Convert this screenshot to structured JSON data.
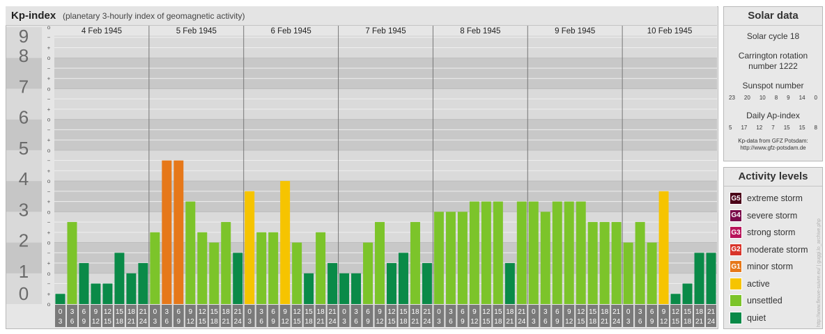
{
  "header": {
    "title": "Kp-index",
    "subtitle": "(planetary 3-hourly index of geomagnetic activity)"
  },
  "colors": {
    "quiet": "#0a8a48",
    "unsettled": "#7cc42a",
    "active": "#f6c400",
    "minor_storm": "#e6781a",
    "moderate_storm": "#d8342a",
    "strong_storm": "#b8145a",
    "severe_storm": "#7a0a4a",
    "extreme_storm": "#4a0018"
  },
  "chart_data": {
    "type": "bar",
    "ylim": [
      0,
      9
    ],
    "y_ticks": [
      "0",
      "1",
      "2",
      "3",
      "4",
      "5",
      "6",
      "7",
      "8",
      "9"
    ],
    "sub_ticks": [
      "+",
      "o",
      "−"
    ],
    "days": [
      "4 Feb 1945",
      "5 Feb 1945",
      "6 Feb 1945",
      "7 Feb 1945",
      "8 Feb 1945",
      "9 Feb 1945",
      "10 Feb 1945"
    ],
    "interval_labels": [
      [
        "0",
        "3"
      ],
      [
        "3",
        "6"
      ],
      [
        "6",
        "9"
      ],
      [
        "9",
        "12"
      ],
      [
        "12",
        "15"
      ],
      [
        "15",
        "18"
      ],
      [
        "18",
        "21"
      ],
      [
        "21",
        "24"
      ]
    ],
    "values": [
      [
        0.333,
        2.667,
        1.333,
        0.667,
        0.667,
        1.667,
        1.0,
        1.333
      ],
      [
        2.333,
        4.667,
        4.667,
        3.333,
        2.333,
        2.0,
        2.667,
        1.667
      ],
      [
        3.667,
        2.333,
        2.333,
        4.0,
        2.0,
        1.0,
        2.333,
        1.333
      ],
      [
        1.0,
        1.0,
        2.0,
        2.667,
        1.333,
        1.667,
        2.667,
        1.333
      ],
      [
        3.0,
        3.0,
        3.0,
        3.333,
        3.333,
        3.333,
        1.333,
        3.333
      ],
      [
        3.333,
        3.0,
        3.333,
        3.333,
        3.333,
        2.667,
        2.667,
        2.667
      ],
      [
        2.0,
        2.667,
        2.0,
        3.667,
        0.333,
        0.667,
        1.667,
        1.667
      ]
    ]
  },
  "solar_data": {
    "heading": "Solar data",
    "solar_cycle": "Solar cycle 18",
    "carrington_line1": "Carrington rotation",
    "carrington_line2": "number 1222",
    "sunspot_label": "Sunspot number",
    "sunspot_numbers": [
      "23",
      "20",
      "10",
      "8",
      "9",
      "14",
      "0"
    ],
    "ap_label": "Daily Ap-index",
    "ap_numbers": [
      "5",
      "17",
      "12",
      "7",
      "15",
      "15",
      "8"
    ],
    "credit_line1": "Kp-data from GFZ Potsdam:",
    "credit_line2": "http://www.gfz-potsdam.de"
  },
  "activity_levels": {
    "heading": "Activity levels",
    "items": [
      {
        "code": "G5",
        "label": "extreme storm",
        "color": "#4a0018"
      },
      {
        "code": "G4",
        "label": "severe storm",
        "color": "#7a0a4a"
      },
      {
        "code": "G3",
        "label": "strong storm",
        "color": "#b8145a"
      },
      {
        "code": "G2",
        "label": "moderate storm",
        "color": "#d8342a"
      },
      {
        "code": "G1",
        "label": "minor storm",
        "color": "#e6781a"
      },
      {
        "code": "",
        "label": "active",
        "color": "#f6c400"
      },
      {
        "code": "",
        "label": "unsettled",
        "color": "#7cc42a"
      },
      {
        "code": "",
        "label": "quiet",
        "color": "#0a8a48"
      }
    ]
  },
  "side_text": "http://www.fleuve-suivre.eu/ | guggi.lo_archive.php"
}
